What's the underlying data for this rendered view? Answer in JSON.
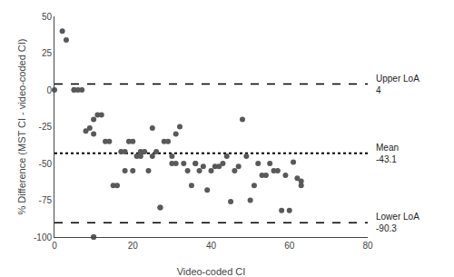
{
  "chart_data": {
    "type": "scatter",
    "xlabel": "Video-coded CI",
    "ylabel": "% Difference (MST CI - video-coded CI)",
    "x": [
      0,
      2,
      3,
      5,
      5,
      6,
      7,
      8,
      9,
      10,
      10,
      11,
      12,
      13,
      14,
      15,
      16,
      17,
      18,
      18,
      19,
      20,
      20,
      21,
      22,
      22,
      23,
      24,
      25,
      25,
      26,
      27,
      28,
      29,
      30,
      30,
      31,
      31,
      32,
      33,
      34,
      35,
      36,
      36,
      37,
      38,
      39,
      40,
      41,
      42,
      43,
      44,
      45,
      46,
      47,
      48,
      49,
      50,
      51,
      52,
      53,
      54,
      55,
      56,
      57,
      58,
      59,
      60,
      61,
      62,
      63,
      10,
      10,
      27,
      63
    ],
    "values": [
      0,
      40,
      34,
      0,
      0,
      0,
      0,
      -28,
      -26,
      -30,
      -20,
      -17,
      -17,
      -35,
      -35,
      -65,
      -65,
      -42,
      -42,
      -55,
      -35,
      -35,
      -55,
      -45,
      -42,
      -45,
      -42,
      -55,
      -26,
      -45,
      -42,
      -80,
      -35,
      -35,
      -45,
      -50,
      -30,
      -50,
      -25,
      -50,
      -55,
      -65,
      -50,
      -50,
      -55,
      -52,
      -68,
      -55,
      -52,
      -52,
      -50,
      -45,
      -76,
      -55,
      -52,
      -20,
      -45,
      -75,
      -65,
      -50,
      -58,
      -58,
      -50,
      -55,
      -55,
      -82,
      -58,
      -82,
      -49,
      -60,
      -65,
      -100,
      -100,
      -80,
      -62
    ],
    "color": "#595959",
    "marker": "circle",
    "xlim": [
      0,
      80
    ],
    "ylim": [
      -100,
      50
    ],
    "xticks": [
      0,
      20,
      40,
      60,
      80
    ],
    "yticks": [
      -100,
      -75,
      -50,
      -25,
      0,
      25,
      50
    ],
    "grid": false,
    "reference_lines": [
      {
        "value": 4,
        "label": "Upper LoA\n4",
        "line_style": "dashed",
        "color": "black"
      },
      {
        "value": -43.1,
        "label": "Mean\n-43.1",
        "line_style": "dotted",
        "color": "black"
      },
      {
        "value": -90.3,
        "label": "Lower LoA\n-90.3",
        "line_style": "dashed",
        "color": "black"
      }
    ]
  }
}
